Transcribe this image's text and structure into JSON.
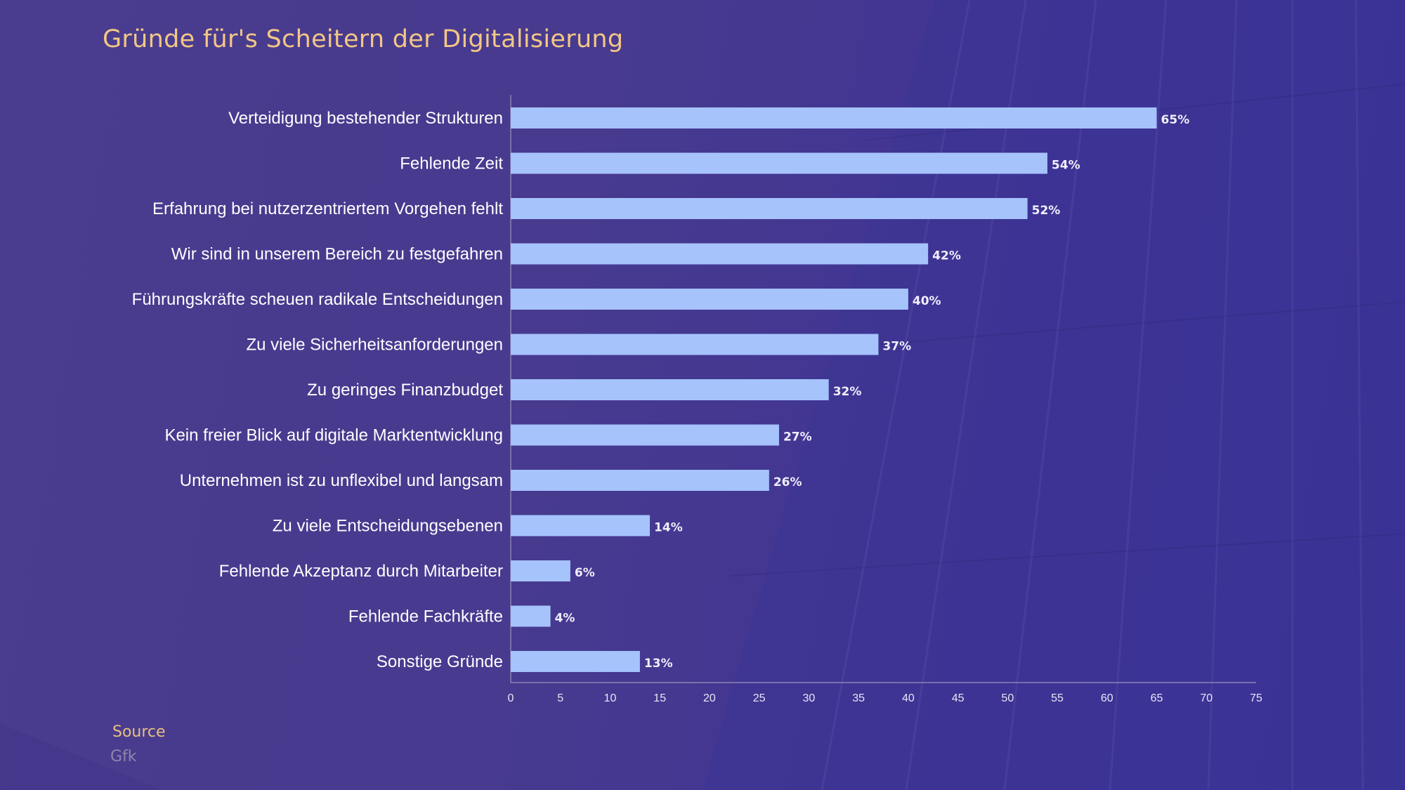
{
  "title": "Gründe für's Scheitern der Digitalisierung",
  "source": {
    "label": "Source",
    "value": "Gfk"
  },
  "colors": {
    "bar": "#a6c3fc",
    "title": "#f3c785",
    "text": "#ffffff",
    "axis": "#9a93bd"
  },
  "chart_data": {
    "type": "bar",
    "orientation": "horizontal",
    "title": "Gründe für's Scheitern der Digitalisierung",
    "xlabel": "",
    "ylabel": "",
    "xlim": [
      0,
      75
    ],
    "xticks": [
      0,
      5,
      10,
      15,
      20,
      25,
      30,
      35,
      40,
      45,
      50,
      55,
      60,
      65,
      70,
      75
    ],
    "categories": [
      "Verteidigung bestehender Strukturen",
      "Fehlende Zeit",
      "Erfahrung bei nutzerzentriertem Vorgehen fehlt",
      "Wir sind in unserem Bereich zu festgefahren",
      "Führungskräfte scheuen radikale Entscheidungen",
      "Zu viele Sicherheitsanforderungen",
      "Zu geringes Finanzbudget",
      "Kein freier Blick auf digitale Marktentwicklung",
      "Unternehmen ist zu unflexibel und langsam",
      "Zu viele Entscheidungsebenen",
      "Fehlende Akzeptanz durch Mitarbeiter",
      "Fehlende Fachkräfte",
      "Sonstige Gründe"
    ],
    "values": [
      65,
      54,
      52,
      42,
      40,
      37,
      32,
      27,
      26,
      14,
      6,
      4,
      13
    ],
    "value_labels": [
      "65%",
      "54%",
      "52%",
      "42%",
      "40%",
      "37%",
      "32%",
      "27%",
      "26%",
      "14%",
      "6%",
      "4%",
      "13%"
    ],
    "grid": false,
    "legend": "none"
  }
}
